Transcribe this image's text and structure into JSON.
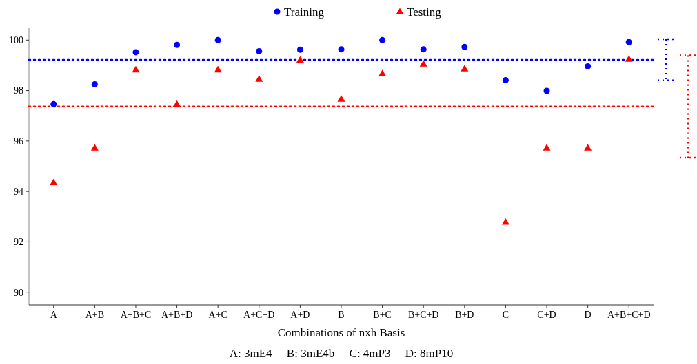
{
  "chart_data": {
    "type": "scatter",
    "xlabel": "Combinations of nxh Basis",
    "categories": [
      "A",
      "A+B",
      "A+B+C",
      "A+B+D",
      "A+C",
      "A+C+D",
      "A+D",
      "B",
      "B+C",
      "B+C+D",
      "B+D",
      "C",
      "C+D",
      "D",
      "A+B+C+D"
    ],
    "series": [
      {
        "name": "Training",
        "color": "#0000ff",
        "marker": "circle",
        "values": [
          97.46,
          98.25,
          99.52,
          99.81,
          100,
          99.56,
          99.62,
          99.63,
          100,
          99.63,
          99.73,
          98.41,
          97.99,
          98.96,
          99.92
        ]
      },
      {
        "name": "Testing",
        "color": "#ff0000",
        "marker": "triangle",
        "values": [
          94.36,
          95.73,
          98.83,
          97.46,
          98.83,
          98.46,
          99.22,
          97.67,
          98.68,
          99.06,
          98.87,
          92.79,
          95.73,
          95.73,
          99.25
        ]
      }
    ],
    "ylim": [
      89.5,
      100.5
    ],
    "yticks": [
      90,
      92,
      94,
      96,
      98,
      100
    ],
    "grid": false,
    "legend": "top",
    "ref_lines": [
      {
        "axis": "y",
        "value": 99.22,
        "color": "#0000ff",
        "line_style": "dotted"
      },
      {
        "axis": "y",
        "value": 97.37,
        "color": "#ff0000",
        "line_style": "dotted"
      }
    ],
    "annotations": [
      "A: 3mE4     B: 3mE4b     C: 4mP3     D: 8mP10"
    ]
  }
}
